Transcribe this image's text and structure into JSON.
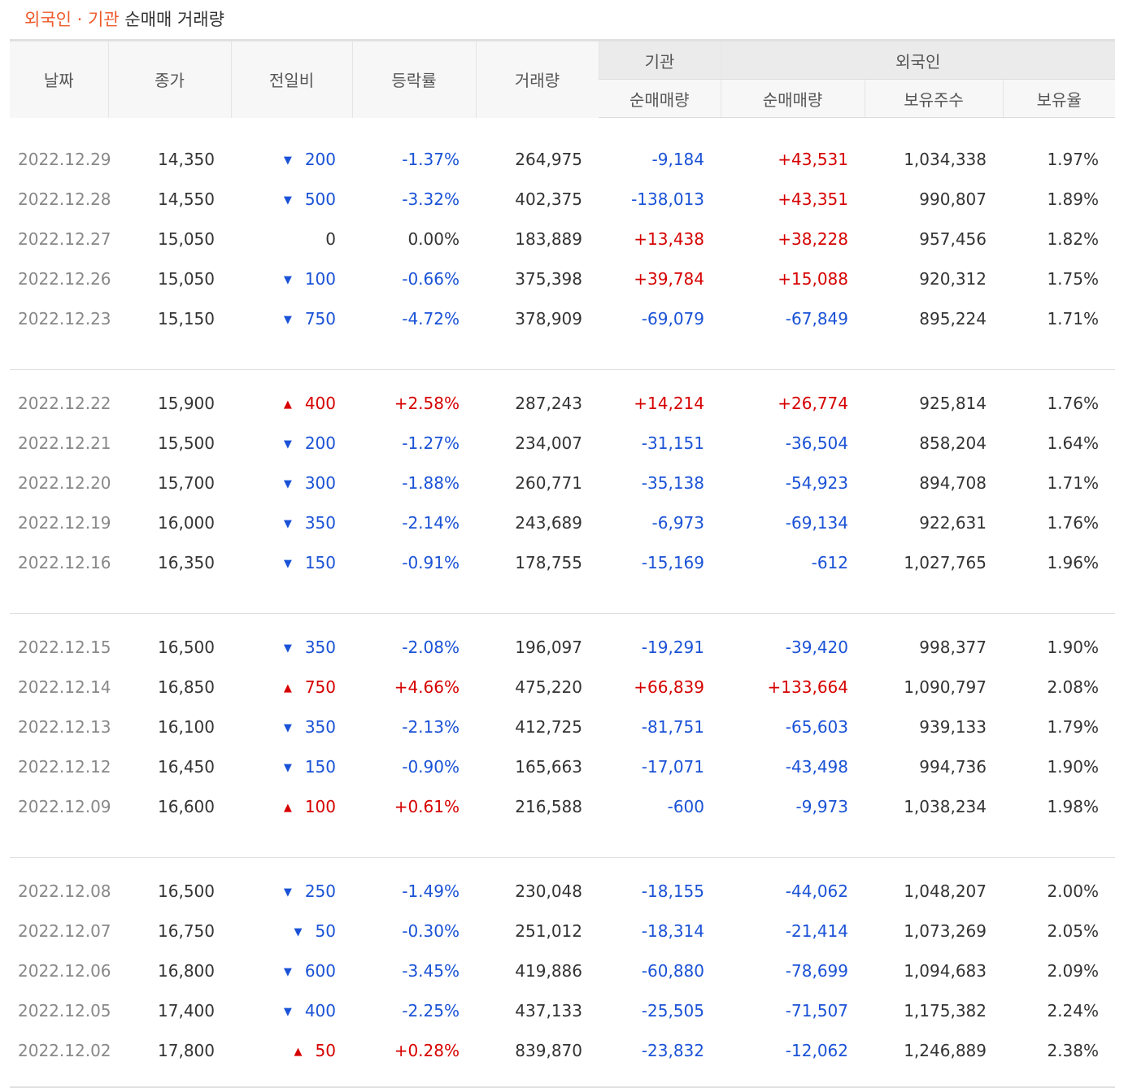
{
  "title": {
    "accent": "외국인 · 기관",
    "rest": "순매매 거래량"
  },
  "headers": {
    "date": "날짜",
    "close": "종가",
    "change": "전일비",
    "rate": "등락률",
    "volume": "거래량",
    "inst_group": "기관",
    "foreign_group": "외국인",
    "inst_net": "순매매량",
    "foreign_net": "순매매량",
    "holdings": "보유주수",
    "ratio": "보유율"
  },
  "colors": {
    "up": "#d60000",
    "down": "#1a52d6",
    "accent": "#ee5a2c"
  },
  "groups": [
    [
      {
        "date": "2022.12.29",
        "close": "14,350",
        "dir": "down",
        "change": "200",
        "rate": "-1.37%",
        "volume": "264,975",
        "inst": "-9,184",
        "foreign": "+43,531",
        "holdings": "1,034,338",
        "ratio": "1.97%"
      },
      {
        "date": "2022.12.28",
        "close": "14,550",
        "dir": "down",
        "change": "500",
        "rate": "-3.32%",
        "volume": "402,375",
        "inst": "-138,013",
        "foreign": "+43,351",
        "holdings": "990,807",
        "ratio": "1.89%"
      },
      {
        "date": "2022.12.27",
        "close": "15,050",
        "dir": "none",
        "change": "0",
        "rate": "0.00%",
        "volume": "183,889",
        "inst": "+13,438",
        "foreign": "+38,228",
        "holdings": "957,456",
        "ratio": "1.82%"
      },
      {
        "date": "2022.12.26",
        "close": "15,050",
        "dir": "down",
        "change": "100",
        "rate": "-0.66%",
        "volume": "375,398",
        "inst": "+39,784",
        "foreign": "+15,088",
        "holdings": "920,312",
        "ratio": "1.75%"
      },
      {
        "date": "2022.12.23",
        "close": "15,150",
        "dir": "down",
        "change": "750",
        "rate": "-4.72%",
        "volume": "378,909",
        "inst": "-69,079",
        "foreign": "-67,849",
        "holdings": "895,224",
        "ratio": "1.71%"
      }
    ],
    [
      {
        "date": "2022.12.22",
        "close": "15,900",
        "dir": "up",
        "change": "400",
        "rate": "+2.58%",
        "volume": "287,243",
        "inst": "+14,214",
        "foreign": "+26,774",
        "holdings": "925,814",
        "ratio": "1.76%"
      },
      {
        "date": "2022.12.21",
        "close": "15,500",
        "dir": "down",
        "change": "200",
        "rate": "-1.27%",
        "volume": "234,007",
        "inst": "-31,151",
        "foreign": "-36,504",
        "holdings": "858,204",
        "ratio": "1.64%"
      },
      {
        "date": "2022.12.20",
        "close": "15,700",
        "dir": "down",
        "change": "300",
        "rate": "-1.88%",
        "volume": "260,771",
        "inst": "-35,138",
        "foreign": "-54,923",
        "holdings": "894,708",
        "ratio": "1.71%"
      },
      {
        "date": "2022.12.19",
        "close": "16,000",
        "dir": "down",
        "change": "350",
        "rate": "-2.14%",
        "volume": "243,689",
        "inst": "-6,973",
        "foreign": "-69,134",
        "holdings": "922,631",
        "ratio": "1.76%"
      },
      {
        "date": "2022.12.16",
        "close": "16,350",
        "dir": "down",
        "change": "150",
        "rate": "-0.91%",
        "volume": "178,755",
        "inst": "-15,169",
        "foreign": "-612",
        "holdings": "1,027,765",
        "ratio": "1.96%"
      }
    ],
    [
      {
        "date": "2022.12.15",
        "close": "16,500",
        "dir": "down",
        "change": "350",
        "rate": "-2.08%",
        "volume": "196,097",
        "inst": "-19,291",
        "foreign": "-39,420",
        "holdings": "998,377",
        "ratio": "1.90%"
      },
      {
        "date": "2022.12.14",
        "close": "16,850",
        "dir": "up",
        "change": "750",
        "rate": "+4.66%",
        "volume": "475,220",
        "inst": "+66,839",
        "foreign": "+133,664",
        "holdings": "1,090,797",
        "ratio": "2.08%"
      },
      {
        "date": "2022.12.13",
        "close": "16,100",
        "dir": "down",
        "change": "350",
        "rate": "-2.13%",
        "volume": "412,725",
        "inst": "-81,751",
        "foreign": "-65,603",
        "holdings": "939,133",
        "ratio": "1.79%"
      },
      {
        "date": "2022.12.12",
        "close": "16,450",
        "dir": "down",
        "change": "150",
        "rate": "-0.90%",
        "volume": "165,663",
        "inst": "-17,071",
        "foreign": "-43,498",
        "holdings": "994,736",
        "ratio": "1.90%"
      },
      {
        "date": "2022.12.09",
        "close": "16,600",
        "dir": "up",
        "change": "100",
        "rate": "+0.61%",
        "volume": "216,588",
        "inst": "-600",
        "foreign": "-9,973",
        "holdings": "1,038,234",
        "ratio": "1.98%"
      }
    ],
    [
      {
        "date": "2022.12.08",
        "close": "16,500",
        "dir": "down",
        "change": "250",
        "rate": "-1.49%",
        "volume": "230,048",
        "inst": "-18,155",
        "foreign": "-44,062",
        "holdings": "1,048,207",
        "ratio": "2.00%"
      },
      {
        "date": "2022.12.07",
        "close": "16,750",
        "dir": "down",
        "change": "50",
        "rate": "-0.30%",
        "volume": "251,012",
        "inst": "-18,314",
        "foreign": "-21,414",
        "holdings": "1,073,269",
        "ratio": "2.05%"
      },
      {
        "date": "2022.12.06",
        "close": "16,800",
        "dir": "down",
        "change": "600",
        "rate": "-3.45%",
        "volume": "419,886",
        "inst": "-60,880",
        "foreign": "-78,699",
        "holdings": "1,094,683",
        "ratio": "2.09%"
      },
      {
        "date": "2022.12.05",
        "close": "17,400",
        "dir": "down",
        "change": "400",
        "rate": "-2.25%",
        "volume": "437,133",
        "inst": "-25,505",
        "foreign": "-71,507",
        "holdings": "1,175,382",
        "ratio": "2.24%"
      },
      {
        "date": "2022.12.02",
        "close": "17,800",
        "dir": "up",
        "change": "50",
        "rate": "+0.28%",
        "volume": "839,870",
        "inst": "-23,832",
        "foreign": "-12,062",
        "holdings": "1,246,889",
        "ratio": "2.38%"
      }
    ]
  ]
}
